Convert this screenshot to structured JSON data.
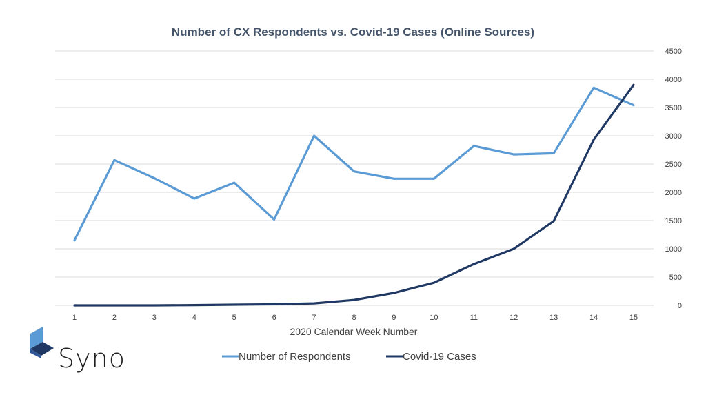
{
  "chart_data": {
    "type": "line",
    "title": "Number of CX Respondents vs. Covid-19 Cases (Online Sources)",
    "xlabel": "2020 Calendar Week Number",
    "ylabel": "",
    "categories": [
      "1",
      "2",
      "3",
      "4",
      "5",
      "6",
      "7",
      "8",
      "9",
      "10",
      "11",
      "12",
      "13",
      "14",
      "15"
    ],
    "ylim": [
      0,
      4500
    ],
    "yticks": [
      "0",
      "500",
      "1000",
      "1500",
      "2000",
      "2500",
      "3000",
      "3500",
      "4000",
      "4500"
    ],
    "y_axis_side": "right",
    "grid": true,
    "legend_position": "bottom",
    "series": [
      {
        "name": "Number of Respondents",
        "color": "#5b9bd5",
        "values": [
          1150,
          2570,
          2250,
          1890,
          2170,
          1520,
          3000,
          2370,
          2240,
          2240,
          2820,
          2670,
          2690,
          3850,
          3540
        ]
      },
      {
        "name": "Covid-19 Cases",
        "color": "#203864",
        "values": [
          0,
          0,
          0,
          5,
          12,
          20,
          35,
          95,
          220,
          400,
          730,
          1000,
          1490,
          2930,
          3900
        ]
      }
    ]
  },
  "brand": {
    "name": "Syno",
    "logo_icon": "cube-logo-icon",
    "colors": [
      "#5b9bd5",
      "#203864"
    ]
  }
}
